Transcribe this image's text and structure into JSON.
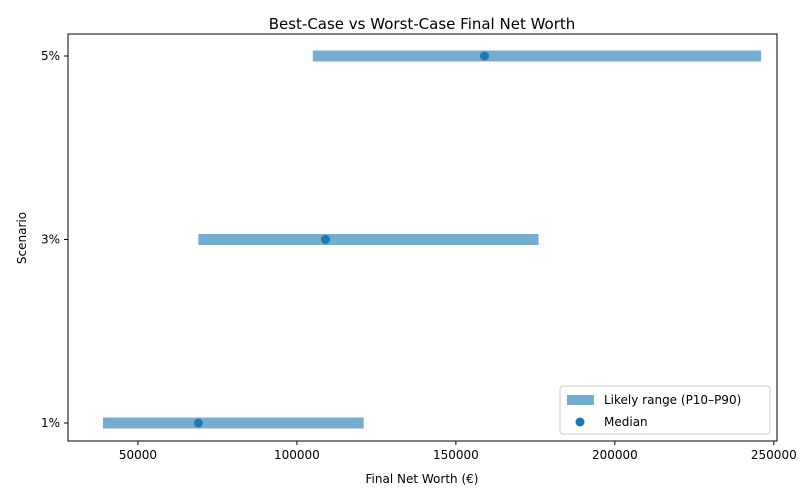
{
  "chart_data": {
    "type": "range",
    "title": "Best-Case vs Worst-Case Final Net Worth",
    "xlabel": "Final Net Worth (€)",
    "ylabel": "Scenario",
    "xlim": [
      28000,
      251000
    ],
    "x_ticks": [
      50000,
      100000,
      150000,
      200000,
      250000
    ],
    "categories": [
      "1%",
      "3%",
      "5%"
    ],
    "series": [
      {
        "name": "Likely range (P10–P90)",
        "kind": "range",
        "color": "#75acd2",
        "values": [
          {
            "category": "1%",
            "low": 39000,
            "high": 121000
          },
          {
            "category": "3%",
            "low": 69000,
            "high": 176000
          },
          {
            "category": "5%",
            "low": 105000,
            "high": 246000
          }
        ]
      },
      {
        "name": "Median",
        "kind": "point",
        "color": "#1f77b4",
        "values": [
          {
            "category": "1%",
            "x": 69000
          },
          {
            "category": "3%",
            "x": 109000
          },
          {
            "category": "5%",
            "x": 159000
          }
        ]
      }
    ],
    "legend": {
      "position": "lower-right"
    },
    "grid": false
  }
}
